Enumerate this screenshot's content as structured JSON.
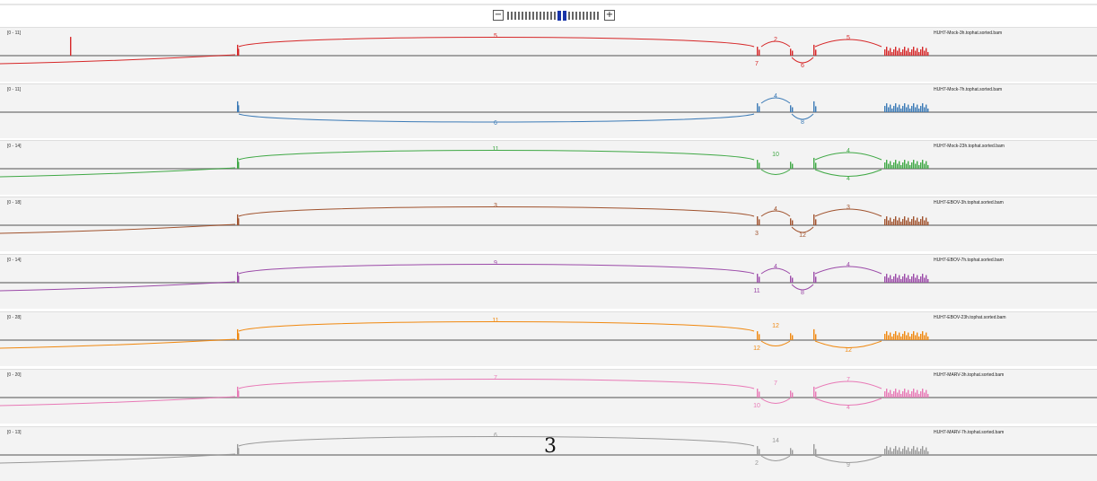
{
  "zoom": {
    "minus_label": "−",
    "plus_label": "+",
    "tick_count": 25,
    "selected_ticks": [
      14,
      15
    ]
  },
  "overlay_label": "3",
  "tracks": [
    {
      "name": "HUH7-Mock-3h.tophat.sorted.bam",
      "range": "[0 - 11]",
      "color": "#d62728",
      "j_left": "5",
      "j_mid_a": "2",
      "j_mid_b": "6",
      "j_right": "5",
      "j_below": "7",
      "long_above": true,
      "left_down": false,
      "mid_below": true
    },
    {
      "name": "HUH7-Mock-7h.tophat.sorted.bam",
      "range": "[0 - 11]",
      "color": "#3b7ab6",
      "j_left": "6",
      "j_mid_a": "4",
      "j_mid_b": "8",
      "j_right": "",
      "j_below": "",
      "long_above": false,
      "left_down": false,
      "mid_below": true
    },
    {
      "name": "HUH7-Mock-23h.tophat.sorted.bam",
      "range": "[0 - 14]",
      "color": "#3fa845",
      "j_left": "11",
      "j_mid_a": "10",
      "j_mid_b": "4",
      "j_right": "4",
      "j_below": "",
      "long_above": true,
      "left_down": true,
      "mid_below": false
    },
    {
      "name": "HUH7-EBOV-3h.tophat.sorted.bam",
      "range": "[0 - 18]",
      "color": "#a0522d",
      "j_left": "3",
      "j_mid_a": "4",
      "j_mid_b": "12",
      "j_right": "3",
      "j_below": "3",
      "long_above": true,
      "left_down": true,
      "mid_below": true
    },
    {
      "name": "HUH7-EBOV-7h.tophat.sorted.bam",
      "range": "[0 - 14]",
      "color": "#9b4aa8",
      "j_left": "9",
      "j_mid_a": "4",
      "j_mid_b": "8",
      "j_right": "4",
      "j_below": "11",
      "long_above": true,
      "left_down": true,
      "mid_below": true
    },
    {
      "name": "HUH7-EBOV-23h.tophat.sorted.bam",
      "range": "[0 - 28]",
      "color": "#f0880f",
      "j_left": "11",
      "j_mid_a": "12",
      "j_mid_b": "12",
      "j_right": "",
      "j_below": "12",
      "long_above": true,
      "left_down": true,
      "mid_below": false
    },
    {
      "name": "HUH7-MARV-3h.tophat.sorted.bam",
      "range": "[0 - 20]",
      "color": "#e879b6",
      "j_left": "7",
      "j_mid_a": "7",
      "j_mid_b": "4",
      "j_right": "7",
      "j_below": "10",
      "long_above": true,
      "left_down": true,
      "mid_below": false
    },
    {
      "name": "HUH7-MARV-7h.tophat.sorted.bam",
      "range": "[0 - 13]",
      "color": "#999999",
      "j_left": "6",
      "j_mid_a": "14",
      "j_mid_b": "9",
      "j_right": "",
      "j_below": "2",
      "long_above": true,
      "left_down": true,
      "mid_below": false
    }
  ]
}
